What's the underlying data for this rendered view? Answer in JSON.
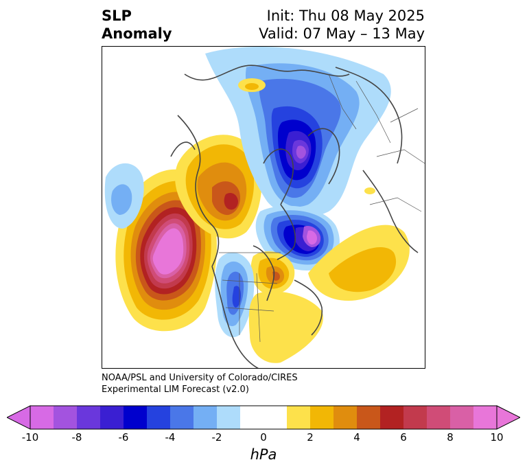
{
  "title": {
    "left_line1": "SLP",
    "left_line2": "Anomaly",
    "right_line1": "Init: Thu 08 May 2025",
    "right_line2": "Valid: 07 May – 13 May"
  },
  "credit": {
    "line1": "NOAA/PSL and University of Colorado/CIRES",
    "line2": "Experimental LIM Forecast (v2.0)"
  },
  "colorbar": {
    "label": "hPa",
    "ticks": [
      "-10",
      "-8",
      "-6",
      "-4",
      "-2",
      "0",
      "2",
      "4",
      "6",
      "8",
      "10"
    ],
    "bins": [
      {
        "range": [
          -10,
          -9
        ],
        "color": "#d76ae5"
      },
      {
        "range": [
          -9,
          -8
        ],
        "color": "#a353df"
      },
      {
        "range": [
          -8,
          -7
        ],
        "color": "#6a37dc"
      },
      {
        "range": [
          -7,
          -6
        ],
        "color": "#3a1fd2"
      },
      {
        "range": [
          -6,
          -5
        ],
        "color": "#0000cd"
      },
      {
        "range": [
          -5,
          -4
        ],
        "color": "#2542df"
      },
      {
        "range": [
          -4,
          -3
        ],
        "color": "#4a77e8"
      },
      {
        "range": [
          -3,
          -2
        ],
        "color": "#74aff4"
      },
      {
        "range": [
          -2,
          -1
        ],
        "color": "#aedcfb"
      },
      {
        "range": [
          -1,
          1
        ],
        "color": "#ffffff"
      },
      {
        "range": [
          1,
          2
        ],
        "color": "#fde14b"
      },
      {
        "range": [
          2,
          3
        ],
        "color": "#f2b705"
      },
      {
        "range": [
          3,
          4
        ],
        "color": "#e08d0e"
      },
      {
        "range": [
          4,
          5
        ],
        "color": "#c9571a"
      },
      {
        "range": [
          5,
          6
        ],
        "color": "#b22222"
      },
      {
        "range": [
          6,
          7
        ],
        "color": "#c23a4d"
      },
      {
        "range": [
          7,
          8
        ],
        "color": "#d04c77"
      },
      {
        "range": [
          8,
          9
        ],
        "color": "#d960a6"
      },
      {
        "range": [
          9,
          10
        ],
        "color": "#e876d9"
      }
    ],
    "extend_low_color": "#d76ae5",
    "extend_high_color": "#e876d9"
  },
  "map": {
    "projection": "north-polar stereographic",
    "features": [
      {
        "name": "north-pacific-high",
        "color_scale": [
          "#fde14b",
          "#f2b705",
          "#e08d0e",
          "#c9571a",
          "#b22222",
          "#c23a4d",
          "#d04c77",
          "#d960a6",
          "#e876d9"
        ]
      },
      {
        "name": "east-pacific-low",
        "color_scale": [
          "#aedcfb",
          "#74aff4"
        ]
      },
      {
        "name": "alaska-siberia-high",
        "color_scale": [
          "#fde14b",
          "#f2b705",
          "#e08d0e",
          "#c9571a",
          "#b22222"
        ]
      },
      {
        "name": "arctic-low",
        "color_scale": [
          "#aedcfb",
          "#74aff4",
          "#4a77e8",
          "#2542df",
          "#0000cd",
          "#3a1fd2",
          "#6a37dc",
          "#a353df"
        ]
      },
      {
        "name": "greenland-low",
        "color_scale": [
          "#aedcfb",
          "#74aff4",
          "#4a77e8",
          "#2542df",
          "#0000cd",
          "#3a1fd2",
          "#a353df",
          "#d76ae5"
        ]
      },
      {
        "name": "atlantic-high",
        "color_scale": [
          "#fde14b",
          "#f2b705"
        ]
      },
      {
        "name": "hudson-bay-high",
        "color_scale": [
          "#fde14b",
          "#f2b705",
          "#e08d0e",
          "#c9571a"
        ]
      },
      {
        "name": "western-us-low",
        "color_scale": [
          "#aedcfb",
          "#74aff4",
          "#4a77e8",
          "#2542df"
        ]
      },
      {
        "name": "eastern-us-high",
        "color_scale": [
          "#fde14b"
        ]
      },
      {
        "name": "europe-high-spot",
        "color_scale": [
          "#fde14b"
        ]
      }
    ],
    "coastline_color": "#444444",
    "border_color": "#555555"
  }
}
